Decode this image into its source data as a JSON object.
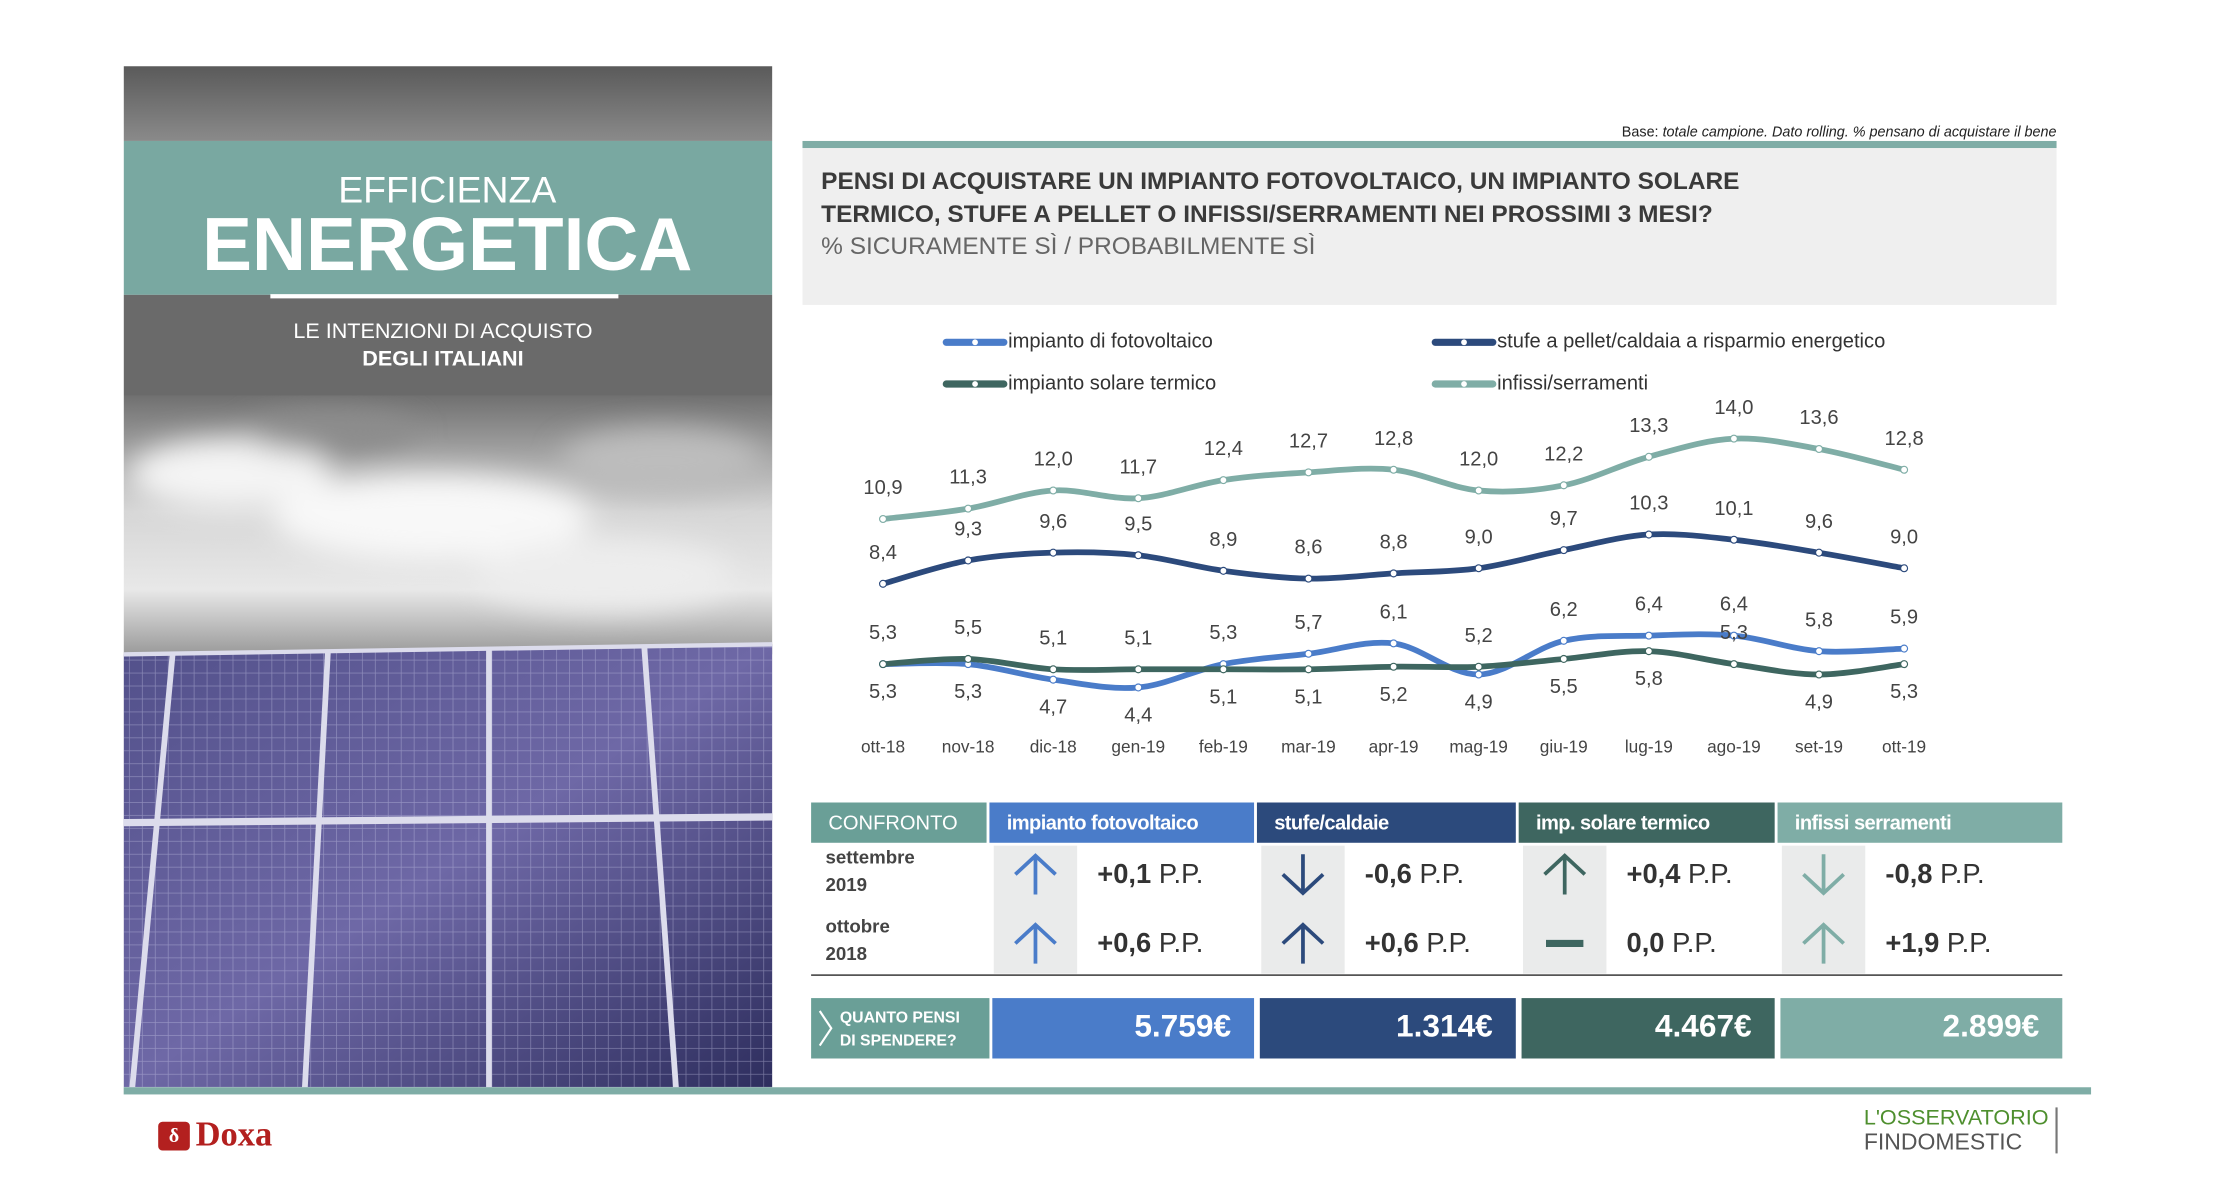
{
  "panel": {
    "title_small": "EFFICIENZA",
    "title_big": "ENERGETICA",
    "subtitle_1": "LE INTENZIONI DI ACQUISTO",
    "subtitle_2": "DEGLI ITALIANI"
  },
  "note": {
    "label": "Base:",
    "text": "totale campione. Dato rolling. % pensano di acquistare il bene"
  },
  "chart_data": {
    "type": "line",
    "title": [
      "PENSI DI ACQUISTARE UN IMPIANTO FOTOVOLTAICO, UN IMPIANTO SOLARE",
      "TERMICO,  STUFE A PELLET O INFISSI/SERRAMENTI NEI PROSSIMI 3 MESI?"
    ],
    "subtitle": "% SICURAMENTE SÌ / PROBABILMENTE SÌ",
    "categories": [
      "ott-18",
      "nov-18",
      "dic-18",
      "gen-19",
      "feb-19",
      "mar-19",
      "apr-19",
      "mag-19",
      "giu-19",
      "lug-19",
      "ago-19",
      "set-19",
      "ott-19"
    ],
    "series": [
      {
        "name": "impianto di fotovoltaico",
        "color": "#4a7cc9",
        "values": [
          5.3,
          5.3,
          4.7,
          4.4,
          5.3,
          5.7,
          6.1,
          4.9,
          6.2,
          6.4,
          6.4,
          5.8,
          5.9
        ],
        "value_labels": [
          "5,3",
          "5,3",
          "4,7",
          "4,4",
          "5,3",
          "5,7",
          "6,1",
          "4,9",
          "6,2",
          "6,4",
          "6,4",
          "5,8",
          "5,9"
        ]
      },
      {
        "name": "stufe a pellet/caldaia a risparmio energetico",
        "color": "#2c4a7c",
        "values": [
          8.4,
          9.3,
          9.6,
          9.5,
          8.9,
          8.6,
          8.8,
          9.0,
          9.7,
          10.3,
          10.1,
          9.6,
          9.0
        ],
        "value_labels": [
          "8,4",
          "9,3",
          "9,6",
          "9,5",
          "8,9",
          "8,6",
          "8,8",
          "9,0",
          "9,7",
          "10,3",
          "10,1",
          "9,6",
          "9,0"
        ]
      },
      {
        "name": "impianto solare termico",
        "color": "#3e6660",
        "values": [
          5.3,
          5.5,
          5.1,
          5.1,
          5.1,
          5.1,
          5.2,
          5.2,
          5.5,
          5.8,
          5.3,
          4.9,
          5.3
        ],
        "value_labels": [
          "5,3",
          "5,5",
          "5,1",
          "5,1",
          "5,1",
          "5,1",
          "5,2",
          "5,2",
          "5,5",
          "5,8",
          "5,3",
          "4,9",
          "5,3"
        ]
      },
      {
        "name": "infissi/serramenti",
        "color": "#7fada6",
        "values": [
          10.9,
          11.3,
          12.0,
          11.7,
          12.4,
          12.7,
          12.8,
          12.0,
          12.2,
          13.3,
          14.0,
          13.6,
          12.8
        ],
        "value_labels": [
          "10,9",
          "11,3",
          "12,0",
          "11,7",
          "12,4",
          "12,7",
          "12,8",
          "12,0",
          "12,2",
          "13,3",
          "14,0",
          "13,6",
          "12,8"
        ]
      }
    ]
  },
  "comparison": {
    "header": "CONFRONTO",
    "header_color": "#6a9f97",
    "columns": [
      {
        "name": "impianto fotovoltaico",
        "color": "#4a7cc9"
      },
      {
        "name": "stufe/caldaie",
        "color": "#2c4a7c"
      },
      {
        "name": "imp. solare termico",
        "color": "#3e6660"
      },
      {
        "name": "infissi serramenti",
        "color": "#7fada6"
      }
    ],
    "rows": [
      {
        "label_1": "settembre",
        "label_2": "2019",
        "cells": [
          {
            "trend": "up",
            "delta": "+0,1",
            "unit": "P.P."
          },
          {
            "trend": "down",
            "delta": "-0,6",
            "unit": "P.P."
          },
          {
            "trend": "up",
            "delta": "+0,4",
            "unit": "P.P."
          },
          {
            "trend": "down",
            "delta": "-0,8",
            "unit": "P.P."
          }
        ]
      },
      {
        "label_1": "ottobre",
        "label_2": "2018",
        "cells": [
          {
            "trend": "up",
            "delta": "+0,6",
            "unit": "P.P."
          },
          {
            "trend": "up",
            "delta": "+0,6",
            "unit": "P.P."
          },
          {
            "trend": "flat",
            "delta": "0,0",
            "unit": "P.P."
          },
          {
            "trend": "up",
            "delta": "+1,9",
            "unit": "P.P."
          }
        ]
      }
    ]
  },
  "spending": {
    "label_1": "QUANTO PENSI",
    "label_2": "DI SPENDERE?",
    "values": [
      "5.759€",
      "1.314€",
      "4.467€",
      "2.899€"
    ]
  },
  "footer": {
    "doxa": "Doxa",
    "brand_1": "L'OSSERVATORIO",
    "brand_2": "FINDOMESTIC"
  }
}
